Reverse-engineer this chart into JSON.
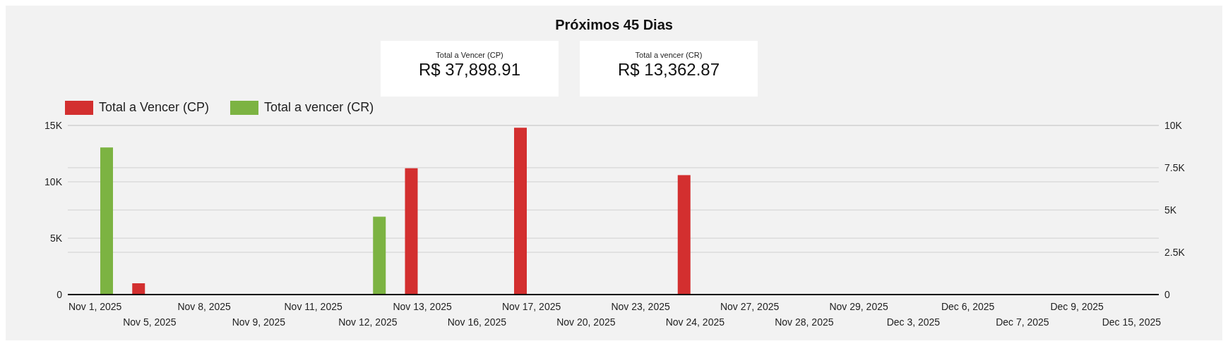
{
  "chart_data": [
    {
      "type": "bar",
      "title": "Próximos 45 Dias",
      "categories": [
        "Nov 1, 2025",
        "Nov 5, 2025",
        "Nov 8, 2025",
        "Nov 9, 2025",
        "Nov 11, 2025",
        "Nov 12, 2025",
        "Nov 13, 2025",
        "Nov 16, 2025",
        "Nov 17, 2025",
        "Nov 20, 2025",
        "Nov 23, 2025",
        "Nov 24, 2025",
        "Nov 27, 2025",
        "Nov 28, 2025",
        "Nov 29, 2025",
        "Dec 3, 2025",
        "Dec 6, 2025",
        "Dec 7, 2025",
        "Dec 9, 2025",
        "Dec 15, 2025"
      ],
      "series": [
        {
          "name": "Total a Vencer (CP)",
          "color": "#d32f2f",
          "values": [
            null,
            1000,
            null,
            null,
            null,
            null,
            11200,
            null,
            14800,
            null,
            null,
            10600,
            null,
            null,
            null,
            null,
            null,
            null,
            null,
            null
          ]
        },
        {
          "name": "Total a vencer (CR)",
          "color": "#7cb342",
          "axis": "y2",
          "values": [
            8700,
            null,
            null,
            null,
            null,
            4600,
            null,
            null,
            null,
            null,
            null,
            null,
            null,
            null,
            null,
            null,
            null,
            null,
            null,
            null
          ]
        }
      ],
      "ylim": [
        0,
        15000
      ],
      "yticks": [
        0,
        {
          "value": 5000,
          "label": "5K"
        },
        {
          "value": 10000,
          "label": "10K"
        },
        {
          "value": 15000,
          "label": "15K"
        }
      ],
      "y2lim": [
        0,
        10000
      ],
      "y2ticks": [
        0,
        {
          "value": 2500,
          "label": "2.5K"
        },
        {
          "value": 5000,
          "label": "5K"
        },
        {
          "value": 7500,
          "label": "7.5K"
        },
        {
          "value": 10000,
          "label": "10K"
        }
      ],
      "grid": true,
      "legend": "top left"
    },
    {
      "type": "other",
      "title": "Total a Vencer (CP)",
      "annotations": [
        "R$ 37,898.91"
      ]
    },
    {
      "type": "other",
      "title": "Total a vencer (CR)",
      "annotations": [
        "R$ 13,362.87"
      ]
    }
  ]
}
